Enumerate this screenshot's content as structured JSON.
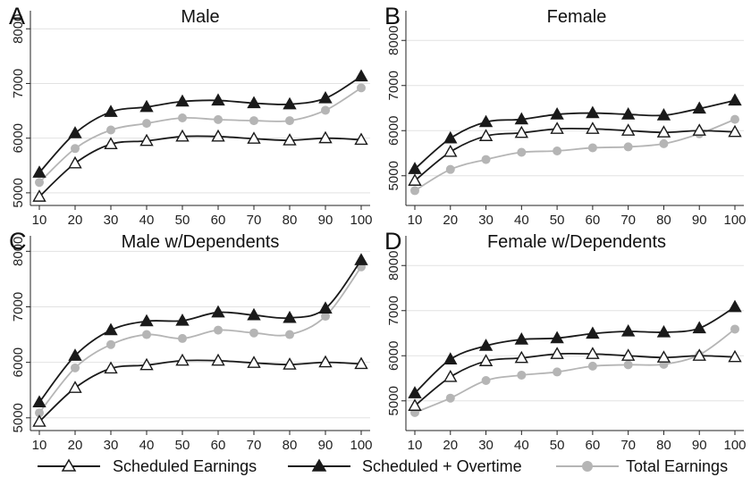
{
  "legend": {
    "items": [
      {
        "label": "Scheduled Earnings",
        "color": "#1a1a1a",
        "marker": "hollow-triangle"
      },
      {
        "label": "Scheduled + Overtime",
        "color": "#1a1a1a",
        "marker": "filled-triangle"
      },
      {
        "label": "Total Earnings",
        "color": "#b5b5b5",
        "marker": "filled-circle"
      }
    ]
  },
  "chart_data": [
    {
      "type": "line",
      "panel_letter": "A",
      "title": "Male",
      "x": [
        10,
        20,
        30,
        40,
        50,
        60,
        70,
        80,
        90,
        100
      ],
      "ylim": [
        4900,
        8200
      ],
      "yticks": [
        5000,
        6000,
        7000,
        8000
      ],
      "grid": true,
      "series": [
        {
          "name": "Scheduled Earnings",
          "values": [
            4930,
            5540,
            5890,
            5950,
            6030,
            6030,
            5990,
            5960,
            6000,
            5970
          ]
        },
        {
          "name": "Scheduled + Overtime",
          "values": [
            5370,
            6090,
            6480,
            6570,
            6670,
            6690,
            6640,
            6620,
            6730,
            7130
          ]
        },
        {
          "name": "Total Earnings",
          "values": [
            5190,
            5810,
            6150,
            6270,
            6370,
            6340,
            6320,
            6320,
            6510,
            6920
          ]
        }
      ]
    },
    {
      "type": "line",
      "panel_letter": "B",
      "title": "Female",
      "x": [
        10,
        20,
        30,
        40,
        50,
        60,
        70,
        80,
        90,
        100
      ],
      "ylim": [
        4500,
        8500
      ],
      "yticks": [
        5000,
        6000,
        7000,
        8000
      ],
      "grid": true,
      "series": [
        {
          "name": "Scheduled Earnings",
          "values": [
            4890,
            5530,
            5880,
            5950,
            6040,
            6040,
            6000,
            5960,
            6000,
            5970
          ]
        },
        {
          "name": "Scheduled + Overtime",
          "values": [
            5150,
            5830,
            6190,
            6250,
            6360,
            6390,
            6360,
            6340,
            6490,
            6670
          ]
        },
        {
          "name": "Total Earnings",
          "values": [
            4670,
            5140,
            5360,
            5520,
            5550,
            5620,
            5640,
            5710,
            5930,
            6250
          ]
        }
      ]
    },
    {
      "type": "line",
      "panel_letter": "C",
      "title": "Male w/Dependents",
      "x": [
        10,
        20,
        30,
        40,
        50,
        60,
        70,
        80,
        90,
        100
      ],
      "ylim": [
        4900,
        8150
      ],
      "yticks": [
        5000,
        6000,
        7000,
        8000
      ],
      "grid": true,
      "series": [
        {
          "name": "Scheduled Earnings",
          "values": [
            4930,
            5540,
            5890,
            5950,
            6030,
            6030,
            5990,
            5960,
            6000,
            5970
          ]
        },
        {
          "name": "Scheduled + Overtime",
          "values": [
            5280,
            6120,
            6580,
            6740,
            6750,
            6900,
            6850,
            6800,
            6970,
            7840
          ]
        },
        {
          "name": "Total Earnings",
          "values": [
            5090,
            5900,
            6320,
            6500,
            6430,
            6580,
            6530,
            6500,
            6830,
            7720
          ]
        }
      ]
    },
    {
      "type": "line",
      "panel_letter": "D",
      "title": "Female w/Dependents",
      "x": [
        10,
        20,
        30,
        40,
        50,
        60,
        70,
        80,
        90,
        100
      ],
      "ylim": [
        4500,
        8500
      ],
      "yticks": [
        5000,
        6000,
        7000,
        8000
      ],
      "grid": true,
      "series": [
        {
          "name": "Scheduled Earnings",
          "values": [
            4890,
            5530,
            5880,
            5950,
            6040,
            6040,
            6000,
            5960,
            6000,
            5970
          ]
        },
        {
          "name": "Scheduled + Overtime",
          "values": [
            5170,
            5920,
            6220,
            6360,
            6390,
            6490,
            6540,
            6520,
            6610,
            7080
          ]
        },
        {
          "name": "Total Earnings",
          "values": [
            4740,
            5060,
            5450,
            5570,
            5640,
            5770,
            5800,
            5810,
            6020,
            6590
          ]
        }
      ]
    }
  ]
}
